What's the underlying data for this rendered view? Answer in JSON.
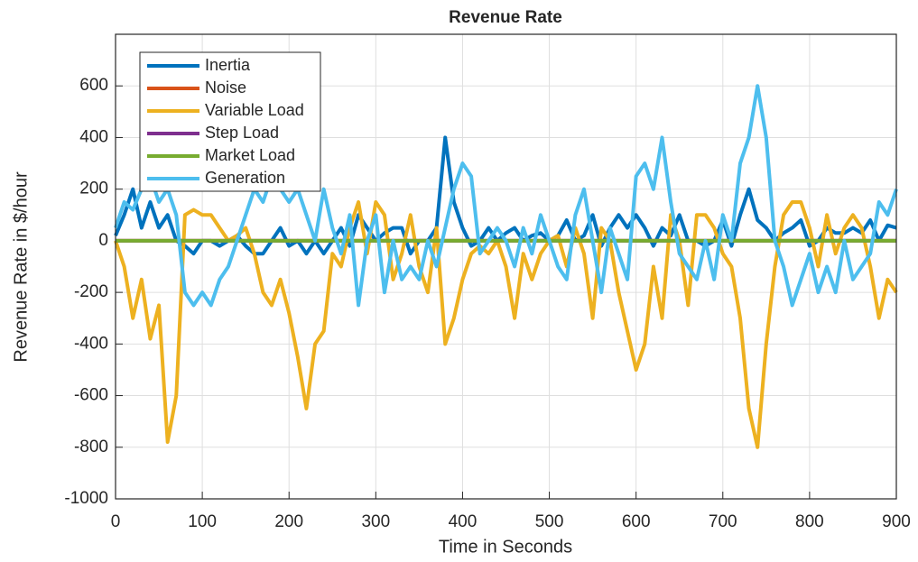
{
  "chart_data": {
    "type": "line",
    "title": "Revenue Rate",
    "x_label": "Time in Seconds",
    "y_label": "Revenue Rate in $/hour",
    "x": [
      0,
      10,
      20,
      30,
      40,
      50,
      60,
      70,
      80,
      90,
      100,
      110,
      120,
      130,
      140,
      150,
      160,
      170,
      180,
      190,
      200,
      210,
      220,
      230,
      240,
      250,
      260,
      270,
      280,
      290,
      300,
      310,
      320,
      330,
      340,
      350,
      360,
      370,
      380,
      390,
      400,
      410,
      420,
      430,
      440,
      450,
      460,
      470,
      480,
      490,
      500,
      510,
      520,
      530,
      540,
      550,
      560,
      570,
      580,
      590,
      600,
      610,
      620,
      630,
      640,
      650,
      660,
      670,
      680,
      690,
      700,
      710,
      720,
      730,
      740,
      750,
      760,
      770,
      780,
      790,
      800,
      810,
      820,
      830,
      840,
      850,
      860,
      870,
      880,
      890,
      900
    ],
    "series": [
      {
        "name": "Inertia",
        "color": "#0072bd",
        "values": [
          20,
          100,
          200,
          50,
          150,
          50,
          100,
          0,
          -20,
          -50,
          0,
          0,
          -20,
          0,
          20,
          -20,
          -50,
          -50,
          0,
          50,
          -20,
          0,
          -50,
          0,
          -50,
          0,
          50,
          -20,
          100,
          50,
          0,
          30,
          50,
          50,
          -50,
          0,
          0,
          50,
          400,
          150,
          50,
          -20,
          0,
          50,
          0,
          30,
          50,
          0,
          20,
          30,
          0,
          20,
          80,
          0,
          20,
          100,
          -20,
          50,
          100,
          50,
          100,
          50,
          -20,
          50,
          20,
          100,
          0,
          0,
          -20,
          0,
          80,
          -20,
          100,
          200,
          80,
          50,
          0,
          30,
          50,
          80,
          -20,
          0,
          50,
          30,
          30,
          50,
          30,
          80,
          0,
          60,
          50
        ]
      },
      {
        "name": "Noise",
        "color": "#d95319",
        "values": [
          0,
          0,
          0,
          0,
          0,
          0,
          0,
          0,
          0,
          0,
          0,
          0,
          0,
          0,
          0,
          0,
          0,
          0,
          0,
          0,
          0,
          0,
          0,
          0,
          0,
          0,
          0,
          0,
          0,
          0,
          0,
          0,
          0,
          0,
          0,
          0,
          0,
          0,
          0,
          0,
          0,
          0,
          0,
          0,
          0,
          0,
          0,
          0,
          0,
          0,
          0,
          0,
          0,
          0,
          0,
          0,
          0,
          0,
          0,
          0,
          0,
          0,
          0,
          0,
          0,
          0,
          0,
          0,
          0,
          0,
          0,
          0,
          0,
          0,
          0,
          0,
          0,
          0,
          0,
          0,
          0,
          0,
          0,
          0,
          0,
          0,
          0,
          0,
          0,
          0,
          0
        ]
      },
      {
        "name": "Variable Load",
        "color": "#edb120",
        "values": [
          0,
          -100,
          -300,
          -150,
          -380,
          -250,
          -780,
          -600,
          100,
          120,
          100,
          100,
          50,
          0,
          20,
          50,
          -50,
          -200,
          -250,
          -150,
          -280,
          -450,
          -650,
          -400,
          -350,
          -50,
          -100,
          50,
          150,
          -50,
          150,
          100,
          -150,
          -50,
          100,
          -100,
          -200,
          50,
          -400,
          -300,
          -150,
          -50,
          -20,
          -50,
          0,
          -100,
          -300,
          -50,
          -150,
          -50,
          0,
          20,
          -100,
          50,
          -50,
          -300,
          50,
          0,
          -200,
          -350,
          -500,
          -400,
          -100,
          -300,
          100,
          0,
          -250,
          100,
          100,
          50,
          -50,
          -100,
          -300,
          -650,
          -800,
          -400,
          -100,
          100,
          150,
          150,
          50,
          -100,
          100,
          -50,
          50,
          100,
          50,
          -100,
          -300,
          -150,
          -200
        ]
      },
      {
        "name": "Step Load",
        "color": "#7e2f8e",
        "values": [
          0,
          0,
          0,
          0,
          0,
          0,
          0,
          0,
          0,
          0,
          0,
          0,
          0,
          0,
          0,
          0,
          0,
          0,
          0,
          0,
          0,
          0,
          0,
          0,
          0,
          0,
          0,
          0,
          0,
          0,
          0,
          0,
          0,
          0,
          0,
          0,
          0,
          0,
          0,
          0,
          0,
          0,
          0,
          0,
          0,
          0,
          0,
          0,
          0,
          0,
          0,
          0,
          0,
          0,
          0,
          0,
          0,
          0,
          0,
          0,
          0,
          0,
          0,
          0,
          0,
          0,
          0,
          0,
          0,
          0,
          0,
          0,
          0,
          0,
          0,
          0,
          0,
          0,
          0,
          0,
          0,
          0,
          0,
          0,
          0,
          0,
          0,
          0,
          0,
          0,
          0
        ]
      },
      {
        "name": "Market Load",
        "color": "#77ac30",
        "values": [
          0,
          0,
          0,
          0,
          0,
          0,
          0,
          0,
          0,
          0,
          0,
          0,
          0,
          0,
          0,
          0,
          0,
          0,
          0,
          0,
          0,
          0,
          0,
          0,
          0,
          0,
          0,
          0,
          0,
          0,
          0,
          0,
          0,
          0,
          0,
          0,
          0,
          0,
          0,
          0,
          0,
          0,
          0,
          0,
          0,
          0,
          0,
          0,
          0,
          0,
          0,
          0,
          0,
          0,
          0,
          0,
          0,
          0,
          0,
          0,
          0,
          0,
          0,
          0,
          0,
          0,
          0,
          0,
          0,
          0,
          0,
          0,
          0,
          0,
          0,
          0,
          0,
          0,
          0,
          0,
          0,
          0,
          0,
          0,
          0,
          0,
          0,
          0,
          0,
          0,
          0
        ]
      },
      {
        "name": "Generation",
        "color": "#4dbeee",
        "values": [
          50,
          150,
          120,
          200,
          250,
          150,
          200,
          100,
          -200,
          -250,
          -200,
          -250,
          -150,
          -100,
          0,
          100,
          200,
          150,
          250,
          200,
          150,
          200,
          100,
          0,
          200,
          50,
          -50,
          100,
          -250,
          0,
          100,
          -200,
          0,
          -150,
          -100,
          -150,
          0,
          -100,
          50,
          200,
          300,
          250,
          -50,
          0,
          50,
          0,
          -100,
          50,
          -50,
          100,
          0,
          -100,
          -150,
          100,
          200,
          0,
          -200,
          50,
          -50,
          -150,
          250,
          300,
          200,
          400,
          150,
          -50,
          -100,
          -150,
          0,
          -150,
          100,
          0,
          300,
          400,
          600,
          400,
          0,
          -100,
          -250,
          -150,
          -50,
          -200,
          -100,
          -200,
          0,
          -150,
          -100,
          -50,
          150,
          100,
          200
        ]
      }
    ],
    "xlim": [
      0,
      900
    ],
    "xticks": [
      0,
      100,
      200,
      300,
      400,
      500,
      600,
      700,
      800,
      900
    ],
    "ylim": [
      -1000,
      800
    ],
    "yticks": [
      -1000,
      -800,
      -600,
      -400,
      -200,
      0,
      200,
      400,
      600
    ],
    "grid": true,
    "legend": "upper left"
  }
}
